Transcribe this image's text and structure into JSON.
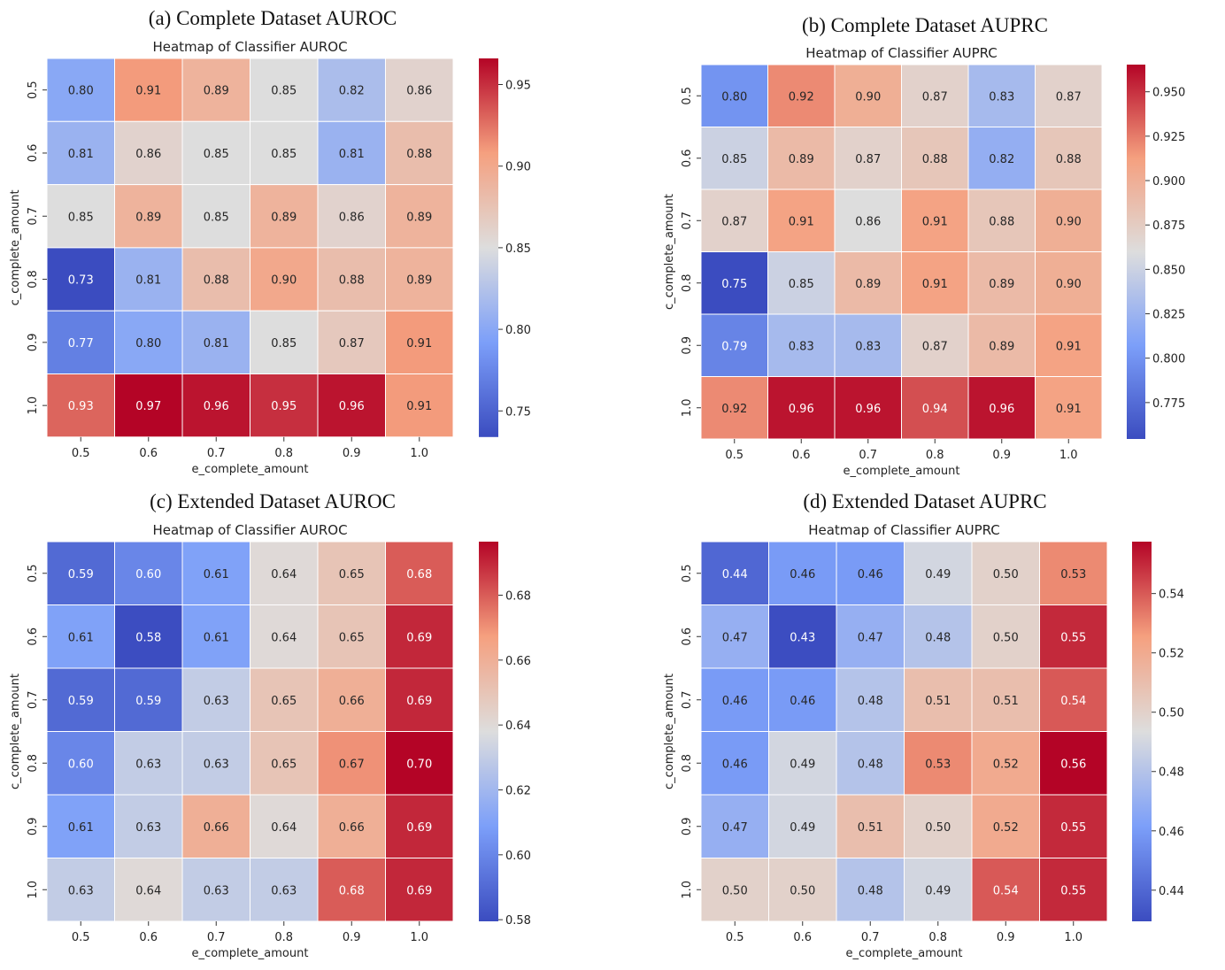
{
  "chart_data": [
    {
      "type": "heatmap",
      "caption": "(a) Complete Dataset AUROC",
      "title": "Heatmap of Classifier AUROC",
      "xlabel": "e_complete_amount",
      "ylabel": "c_complete_amount",
      "x": [
        "0.5",
        "0.6",
        "0.7",
        "0.8",
        "0.9",
        "1.0"
      ],
      "y": [
        "0.5",
        "0.6",
        "0.7",
        "0.8",
        "0.9",
        "1.0"
      ],
      "values": [
        [
          0.8,
          0.91,
          0.89,
          0.85,
          0.82,
          0.86
        ],
        [
          0.81,
          0.86,
          0.85,
          0.85,
          0.81,
          0.88
        ],
        [
          0.85,
          0.89,
          0.85,
          0.89,
          0.86,
          0.89
        ],
        [
          0.73,
          0.81,
          0.88,
          0.9,
          0.88,
          0.89
        ],
        [
          0.77,
          0.8,
          0.81,
          0.85,
          0.87,
          0.91
        ],
        [
          0.93,
          0.97,
          0.96,
          0.95,
          0.96,
          0.91
        ]
      ],
      "colorbar": {
        "min": 0.734,
        "max": 0.966,
        "ticks": [
          "0.75",
          "0.80",
          "0.85",
          "0.90",
          "0.95"
        ]
      },
      "colormap": "coolwarm"
    },
    {
      "type": "heatmap",
      "caption": "(b) Complete Dataset AUPRC",
      "title": "Heatmap of Classifier AUPRC",
      "xlabel": "e_complete_amount",
      "ylabel": "c_complete_amount",
      "x": [
        "0.5",
        "0.6",
        "0.7",
        "0.8",
        "0.9",
        "1.0"
      ],
      "y": [
        "0.5",
        "0.6",
        "0.7",
        "0.8",
        "0.9",
        "1.0"
      ],
      "values": [
        [
          0.8,
          0.92,
          0.9,
          0.87,
          0.83,
          0.87
        ],
        [
          0.85,
          0.89,
          0.87,
          0.88,
          0.82,
          0.88
        ],
        [
          0.87,
          0.91,
          0.86,
          0.91,
          0.88,
          0.9
        ],
        [
          0.75,
          0.85,
          0.89,
          0.91,
          0.89,
          0.9
        ],
        [
          0.79,
          0.83,
          0.83,
          0.87,
          0.89,
          0.91
        ],
        [
          0.92,
          0.96,
          0.96,
          0.94,
          0.96,
          0.91
        ]
      ],
      "colorbar": {
        "min": 0.7545,
        "max": 0.9653,
        "ticks": [
          "0.775",
          "0.800",
          "0.825",
          "0.850",
          "0.875",
          "0.900",
          "0.925",
          "0.950"
        ]
      },
      "colormap": "coolwarm"
    },
    {
      "type": "heatmap",
      "caption": "(c) Extended Dataset AUROC",
      "title": "Heatmap of Classifier AUROC",
      "xlabel": "e_complete_amount",
      "ylabel": "c_complete_amount",
      "x": [
        "0.5",
        "0.6",
        "0.7",
        "0.8",
        "0.9",
        "1.0"
      ],
      "y": [
        "0.5",
        "0.6",
        "0.7",
        "0.8",
        "0.9",
        "1.0"
      ],
      "values": [
        [
          0.59,
          0.6,
          0.61,
          0.64,
          0.65,
          0.68
        ],
        [
          0.61,
          0.58,
          0.61,
          0.64,
          0.65,
          0.69
        ],
        [
          0.59,
          0.59,
          0.63,
          0.65,
          0.66,
          0.69
        ],
        [
          0.6,
          0.63,
          0.63,
          0.65,
          0.67,
          0.7
        ],
        [
          0.61,
          0.63,
          0.66,
          0.64,
          0.66,
          0.69
        ],
        [
          0.63,
          0.64,
          0.63,
          0.63,
          0.68,
          0.69
        ]
      ],
      "colorbar": {
        "min": 0.5795,
        "max": 0.6965,
        "ticks": [
          "0.58",
          "0.60",
          "0.62",
          "0.64",
          "0.66",
          "0.68"
        ]
      },
      "colormap": "coolwarm"
    },
    {
      "type": "heatmap",
      "caption": "(d) Extended Dataset AUPRC",
      "title": "Heatmap of Classifier AUPRC",
      "xlabel": "e_complete_amount",
      "ylabel": "c_complete_amount",
      "x": [
        "0.5",
        "0.6",
        "0.7",
        "0.8",
        "0.9",
        "1.0"
      ],
      "y": [
        "0.5",
        "0.6",
        "0.7",
        "0.8",
        "0.9",
        "1.0"
      ],
      "values": [
        [
          0.44,
          0.46,
          0.46,
          0.49,
          0.5,
          0.53
        ],
        [
          0.47,
          0.43,
          0.47,
          0.48,
          0.5,
          0.55
        ],
        [
          0.46,
          0.46,
          0.48,
          0.51,
          0.51,
          0.54
        ],
        [
          0.46,
          0.49,
          0.48,
          0.53,
          0.52,
          0.56
        ],
        [
          0.47,
          0.49,
          0.51,
          0.5,
          0.52,
          0.55
        ],
        [
          0.5,
          0.5,
          0.48,
          0.49,
          0.54,
          0.55
        ]
      ],
      "colorbar": {
        "min": 0.4295,
        "max": 0.5575,
        "ticks": [
          "0.44",
          "0.46",
          "0.48",
          "0.50",
          "0.52",
          "0.54"
        ]
      },
      "colormap": "coolwarm"
    }
  ]
}
